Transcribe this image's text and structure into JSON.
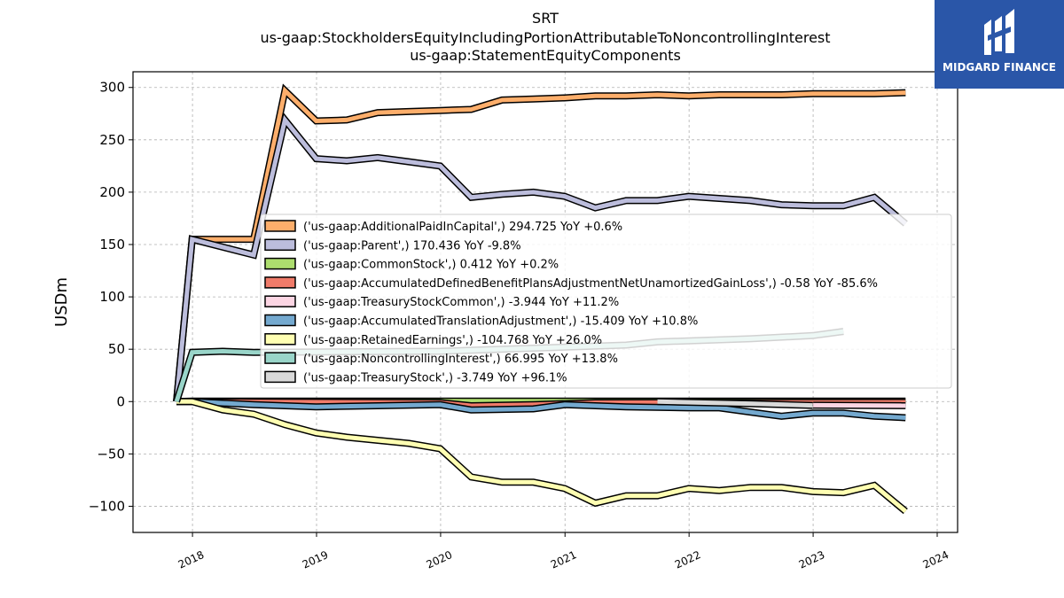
{
  "chart_data": {
    "type": "line",
    "title": "SRT",
    "subtitle": "us-gaap:StockholdersEquityIncludingPortionAttributableToNoncontrollingInterest",
    "subtitle2": "us-gaap:StatementEquityComponents",
    "ylabel": "USDm",
    "xlabel": "",
    "ylim": [
      -125,
      315
    ],
    "xlim": [
      "2017-07-10",
      "2024-03-01"
    ],
    "yticks": [
      300,
      250,
      200,
      150,
      100,
      50,
      0,
      -50,
      -100
    ],
    "ytick_labels": [
      "300",
      "250",
      "200",
      "150",
      "100",
      "50",
      "0",
      "−50",
      "−100"
    ],
    "xtick_labels": [
      "2018",
      "2019",
      "2020",
      "2021",
      "2022",
      "2023",
      "2024"
    ],
    "xtick_dates": [
      "2018-01-01",
      "2019-01-01",
      "2020-01-01",
      "2021-01-01",
      "2022-01-01",
      "2023-01-01",
      "2024-01-01"
    ],
    "grid": true,
    "legend_position": "center",
    "series": [
      {
        "name": "('us-gaap:AdditionalPaidInCapital',) 294.725 YoY +0.6%",
        "color": "#fdae6b",
        "x": [
          "2017-11-15",
          "2017-12-31",
          "2018-06-30",
          "2018-09-30",
          "2018-12-31",
          "2019-03-31",
          "2019-06-30",
          "2019-09-30",
          "2019-12-31",
          "2020-03-31",
          "2020-06-30",
          "2020-09-30",
          "2020-12-31",
          "2021-03-31",
          "2021-06-30",
          "2021-09-30",
          "2021-12-31",
          "2022-03-31",
          "2022-06-30",
          "2022-09-30",
          "2022-12-31",
          "2023-03-31",
          "2023-06-30",
          "2023-09-30"
        ],
        "values": [
          0,
          155,
          155,
          297,
          268,
          269,
          276,
          277,
          278,
          279,
          288,
          289,
          290,
          292,
          292,
          293,
          292,
          293,
          293,
          293,
          294,
          294,
          294,
          295
        ]
      },
      {
        "name": "('us-gaap:Parent',) 170.436 YoY -9.8%",
        "color": "#bcbddc",
        "x": [
          "2017-11-15",
          "2017-12-31",
          "2018-06-30",
          "2018-09-30",
          "2018-12-31",
          "2019-03-31",
          "2019-06-30",
          "2019-09-30",
          "2019-12-31",
          "2020-03-31",
          "2020-06-30",
          "2020-09-30",
          "2020-12-31",
          "2021-03-31",
          "2021-06-30",
          "2021-09-30",
          "2021-12-31",
          "2022-03-31",
          "2022-06-30",
          "2022-09-30",
          "2022-12-31",
          "2023-03-31",
          "2023-06-30",
          "2023-09-30"
        ],
        "values": [
          0,
          155,
          140,
          269,
          232,
          230,
          233,
          229,
          225,
          195,
          198,
          200,
          196,
          185,
          192,
          192,
          196,
          194,
          192,
          188,
          187,
          187,
          195,
          170
        ]
      },
      {
        "name": "('us-gaap:CommonStock',) 0.412 YoY +0.2%",
        "color": "#addd6e",
        "x": [
          "2017-11-15",
          "2017-12-31",
          "2023-09-30"
        ],
        "values": [
          0,
          0.4,
          0.4
        ]
      },
      {
        "name": "('us-gaap:AccumulatedDefinedBenefitPlansAdjustmentNetUnamortizedGainLoss',) -0.58 YoY -85.6%",
        "color": "#f07b6a",
        "x": [
          "2017-11-15",
          "2017-12-31",
          "2019-12-31",
          "2020-03-31",
          "2020-09-30",
          "2021-03-31",
          "2023-09-30"
        ],
        "values": [
          0,
          0,
          -1,
          -4,
          -3,
          -1,
          -0.6
        ]
      },
      {
        "name": "('us-gaap:TreasuryStockCommon',) -3.944 YoY +11.2%",
        "color": "#fcd5e3",
        "x": [
          "2023-01-01",
          "2023-09-30"
        ],
        "values": [
          -3.5,
          -3.9
        ]
      },
      {
        "name": "('us-gaap:AccumulatedTranslationAdjustment',) -15.409 YoY +10.8%",
        "color": "#74a9cf",
        "x": [
          "2017-11-15",
          "2017-12-31",
          "2018-06-30",
          "2018-12-31",
          "2019-06-30",
          "2019-12-31",
          "2020-03-31",
          "2020-09-30",
          "2020-12-31",
          "2021-06-30",
          "2021-12-31",
          "2022-03-31",
          "2022-06-30",
          "2022-09-30",
          "2022-12-31",
          "2023-03-31",
          "2023-06-30",
          "2023-09-30"
        ],
        "values": [
          0,
          0,
          -3,
          -5,
          -4,
          -3,
          -8,
          -7,
          -3,
          -5,
          -6,
          -6,
          -10,
          -14,
          -11,
          -11,
          -14,
          -15.4
        ]
      },
      {
        "name": "('us-gaap:RetainedEarnings',) -104.768 YoY +26.0%",
        "color": "#ffffb2",
        "x": [
          "2017-11-15",
          "2017-12-31",
          "2018-03-31",
          "2018-06-30",
          "2018-09-30",
          "2018-12-31",
          "2019-03-31",
          "2019-06-30",
          "2019-09-30",
          "2019-12-31",
          "2020-03-31",
          "2020-06-30",
          "2020-09-30",
          "2020-12-31",
          "2021-03-31",
          "2021-06-30",
          "2021-09-30",
          "2021-12-31",
          "2022-03-31",
          "2022-06-30",
          "2022-09-30",
          "2022-12-31",
          "2023-03-31",
          "2023-06-30",
          "2023-09-30"
        ],
        "values": [
          0,
          0,
          -8,
          -12,
          -22,
          -30,
          -34,
          -37,
          -40,
          -45,
          -72,
          -77,
          -77,
          -83,
          -97,
          -90,
          -90,
          -83,
          -85,
          -82,
          -82,
          -86,
          -87,
          -80,
          -104.8
        ]
      },
      {
        "name": "('us-gaap:NoncontrollingInterest',) 66.995 YoY +13.8%",
        "color": "#99d5c9",
        "x": [
          "2017-11-15",
          "2017-12-31",
          "2018-03-31",
          "2018-06-30",
          "2019-12-31",
          "2021-06-30",
          "2021-09-30",
          "2022-06-30",
          "2022-12-31",
          "2023-03-31"
        ],
        "values": [
          0,
          47,
          48,
          47,
          48,
          54,
          57,
          60,
          63,
          67
        ]
      },
      {
        "name": "('us-gaap:TreasuryStock',) -3.749 YoY +96.1%",
        "color": "#d9d9d9",
        "x": [
          "2021-09-30",
          "2022-06-30",
          "2022-12-31"
        ],
        "values": [
          0,
          -2,
          -3.7
        ]
      }
    ]
  },
  "logo": {
    "text": "MIDGARD FINANCE"
  }
}
